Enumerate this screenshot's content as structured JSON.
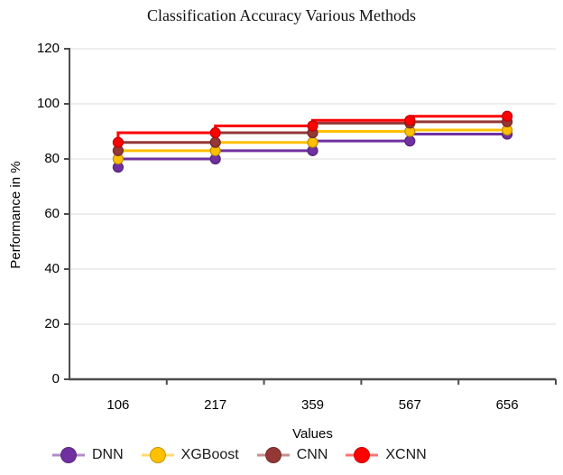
{
  "chart_data": {
    "type": "line",
    "title": "Classification Accuracy Various Methods",
    "xlabel": "Values",
    "ylabel": "Performance in %",
    "categories": [
      "106",
      "217",
      "359",
      "567",
      "656"
    ],
    "series": [
      {
        "name": "DNN",
        "color": "#7030A0",
        "values": [
          77,
          80,
          83,
          86.5,
          89
        ]
      },
      {
        "name": "XGBoost",
        "color": "#FFC000",
        "values": [
          80,
          83,
          86,
          90,
          90.5
        ]
      },
      {
        "name": "CNN",
        "color": "#943735",
        "values": [
          83,
          86,
          89.5,
          93,
          93.5
        ]
      },
      {
        "name": "XCNN",
        "color": "#FF0000",
        "values": [
          86,
          89.5,
          92,
          94,
          95.5
        ]
      }
    ],
    "ylim": [
      0,
      120
    ],
    "yticks": [
      0,
      20,
      40,
      60,
      80,
      100,
      120
    ],
    "line_shape": "step-vertical-then-horizontal",
    "grid": "horizontal",
    "grid_color": "#e3e3e3",
    "axis_color": "#4d4d4d",
    "legend_position": "bottom"
  }
}
